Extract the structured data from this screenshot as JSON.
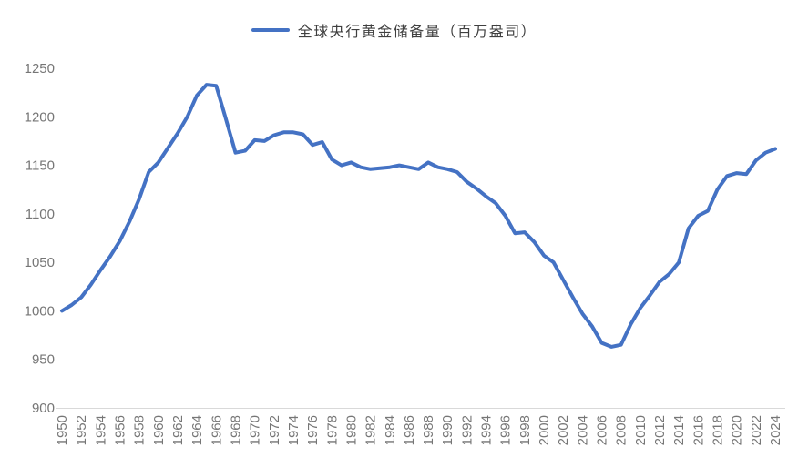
{
  "chart_data": {
    "type": "line",
    "title": "全球央行黄金储备量（百万盎司）",
    "legend": {
      "position": "top",
      "entries": [
        "全球央行黄金储备量（百万盎司）"
      ]
    },
    "xlabel": "",
    "ylabel": "",
    "ylim": [
      900,
      1250
    ],
    "ytick_step": 50,
    "xtick_step": 2,
    "grid": false,
    "x_label_rotation": -90,
    "x": [
      1950,
      1951,
      1952,
      1953,
      1954,
      1955,
      1956,
      1957,
      1958,
      1959,
      1960,
      1961,
      1962,
      1963,
      1964,
      1965,
      1966,
      1967,
      1968,
      1969,
      1970,
      1971,
      1972,
      1973,
      1974,
      1975,
      1976,
      1977,
      1978,
      1979,
      1980,
      1981,
      1982,
      1983,
      1984,
      1985,
      1986,
      1987,
      1988,
      1989,
      1990,
      1991,
      1992,
      1993,
      1994,
      1995,
      1996,
      1997,
      1998,
      1999,
      2000,
      2001,
      2002,
      2003,
      2004,
      2005,
      2006,
      2007,
      2008,
      2009,
      2010,
      2011,
      2012,
      2013,
      2014,
      2015,
      2016,
      2017,
      2018,
      2019,
      2020,
      2021,
      2022,
      2023,
      2024
    ],
    "series": [
      {
        "name": "全球央行黄金储备量（百万盎司）",
        "color": "#4472C4",
        "values": [
          1000,
          1006,
          1014,
          1027,
          1042,
          1056,
          1072,
          1092,
          1115,
          1143,
          1153,
          1168,
          1183,
          1200,
          1222,
          1233,
          1232,
          1198,
          1163,
          1165,
          1176,
          1175,
          1181,
          1184,
          1184,
          1182,
          1171,
          1174,
          1156,
          1150,
          1153,
          1148,
          1146,
          1147,
          1148,
          1150,
          1148,
          1146,
          1153,
          1148,
          1146,
          1143,
          1133,
          1126,
          1118,
          1111,
          1098,
          1080,
          1081,
          1071,
          1057,
          1050,
          1032,
          1014,
          997,
          984,
          967,
          963,
          965,
          986,
          1003,
          1016,
          1030,
          1038,
          1050,
          1085,
          1098,
          1103,
          1125,
          1139,
          1142,
          1141,
          1155,
          1163,
          1167
        ]
      }
    ]
  },
  "colors": {
    "line": "#4472C4",
    "axis_text": "#767676",
    "axis_line": "#D9D9D9",
    "legend_text": "#3f3f3f",
    "background": "#FFFFFF"
  }
}
